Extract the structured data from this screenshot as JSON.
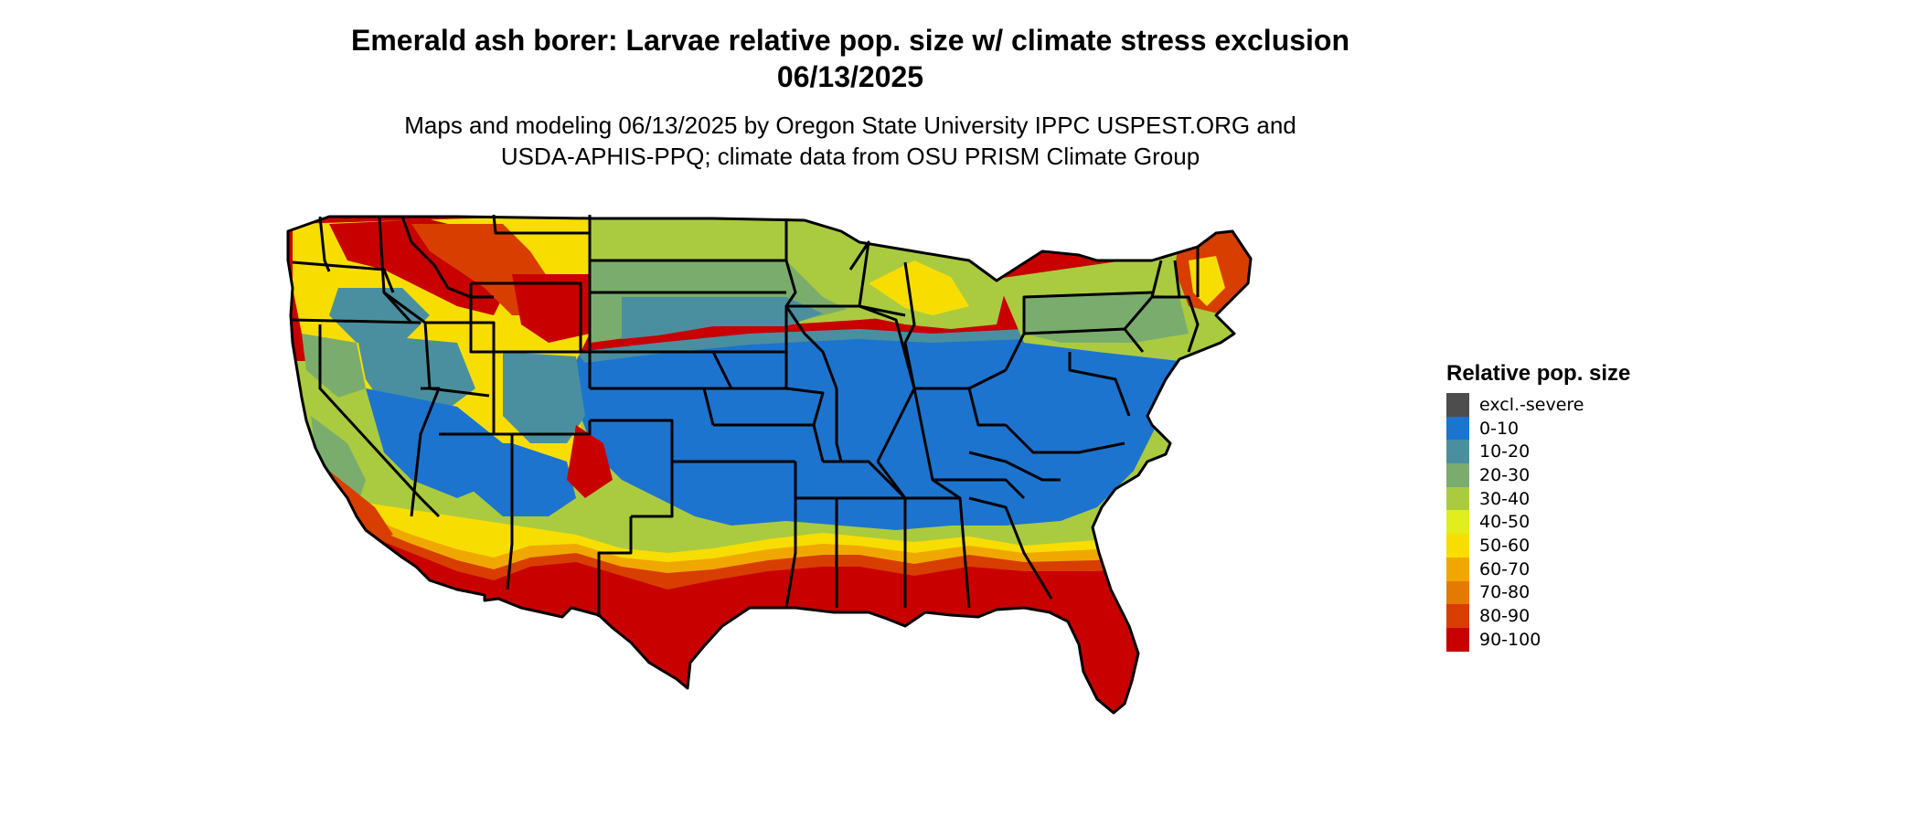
{
  "map": {
    "title": "Emerald ash borer: Larvae relative pop. size w/ climate stress exclusion 06/13/2025",
    "subtitle_line1": "Maps and modeling 06/13/2025 by Oregon State University IPPC USPEST.ORG and",
    "subtitle_line2": "USDA-APHIS-PPQ; climate data from OSU PRISM Climate Group"
  },
  "legend": {
    "title": "Relative pop. size",
    "items": [
      {
        "label": "excl.-severe",
        "color": "#4d4d4d"
      },
      {
        "label": "0-10",
        "color": "#1c74cf"
      },
      {
        "label": "10-20",
        "color": "#4a8fa0"
      },
      {
        "label": "20-30",
        "color": "#7aad6d"
      },
      {
        "label": "30-40",
        "color": "#aacb3f"
      },
      {
        "label": "40-50",
        "color": "#dfee1c"
      },
      {
        "label": "50-60",
        "color": "#f8de00"
      },
      {
        "label": "60-70",
        "color": "#f0a800"
      },
      {
        "label": "70-80",
        "color": "#e57a00"
      },
      {
        "label": "80-90",
        "color": "#d83e00"
      },
      {
        "label": "90-100",
        "color": "#c80000"
      }
    ]
  }
}
